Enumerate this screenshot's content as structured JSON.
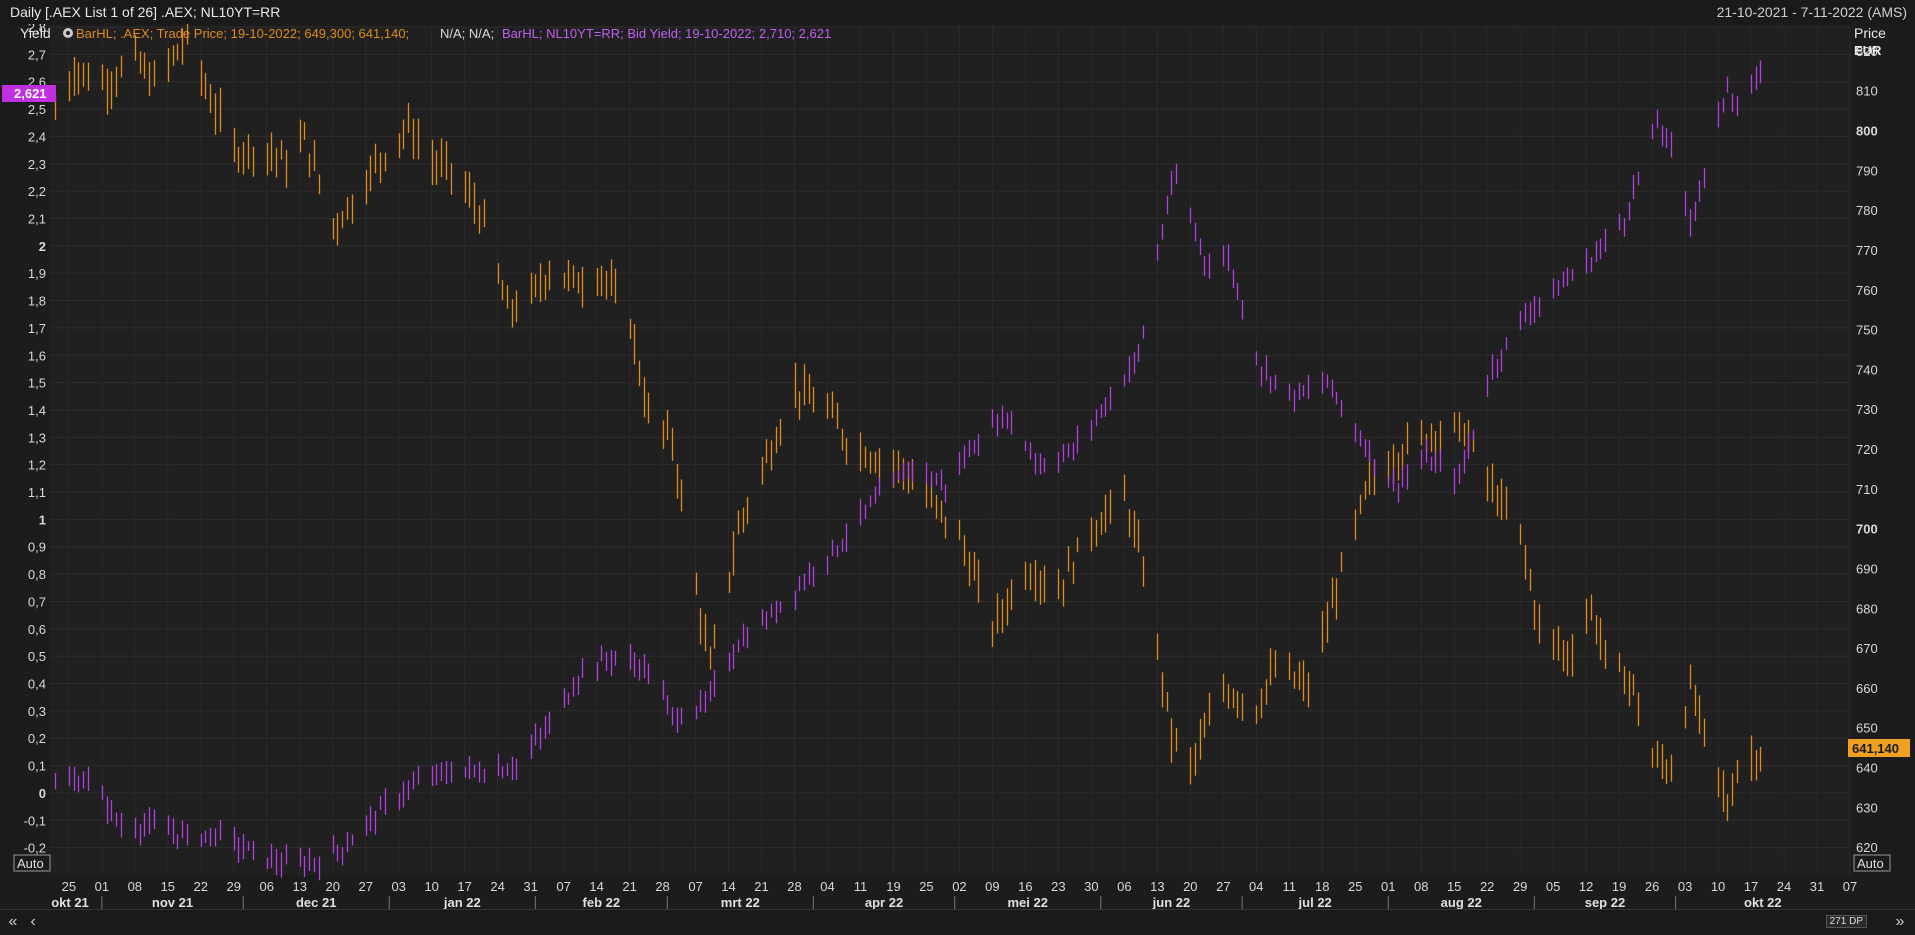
{
  "window": {
    "title": "Daily [.AEX List 1 of 26] .AEX; NL10YT=RR",
    "date_range": "21-10-2021 - 7-11-2022 (AMS)"
  },
  "legend": {
    "icon": "settings-icon",
    "aex_text": "BarHL; .AEX; Trade Price; 19-10-2022; 649,300; 641,140;",
    "na_text": "N/A; N/A;",
    "yield_text": "BarHL; NL10YT=RR; Bid Yield; 19-10-2022; 2,710; 2,621"
  },
  "left_axis": {
    "title": "Yield",
    "auto_label": "Auto",
    "current_value_label": "2,621",
    "tick_labels": [
      "2,8",
      "2,7",
      "2,6",
      "2,5",
      "2,4",
      "2,3",
      "2,2",
      "2,1",
      "2",
      "1,9",
      "1,8",
      "1,7",
      "1,6",
      "1,5",
      "1,4",
      "1,3",
      "1,2",
      "1,1",
      "1",
      "0,9",
      "0,8",
      "0,7",
      "0,6",
      "0,5",
      "0,4",
      "0,3",
      "0,2",
      "0,1",
      "0",
      "-0,1",
      "-0,2"
    ]
  },
  "right_axis": {
    "title_1": "Price",
    "title_2": "EUR",
    "auto_label": "Auto",
    "current_value_label": "641,140",
    "tick_labels": [
      "820",
      "810",
      "800",
      "790",
      "780",
      "770",
      "760",
      "750",
      "740",
      "730",
      "720",
      "710",
      "700",
      "690",
      "680",
      "670",
      "660",
      "650",
      "640",
      "630",
      "620"
    ]
  },
  "x_axis": {
    "day_labels": [
      "25",
      "01",
      "08",
      "15",
      "22",
      "29",
      "06",
      "13",
      "20",
      "27",
      "03",
      "10",
      "17",
      "24",
      "31",
      "07",
      "14",
      "21",
      "28",
      "07",
      "14",
      "21",
      "28",
      "04",
      "11",
      "19",
      "25",
      "02",
      "09",
      "16",
      "23",
      "30",
      "06",
      "13",
      "20",
      "27",
      "04",
      "11",
      "18",
      "25",
      "01",
      "08",
      "15",
      "22",
      "29",
      "05",
      "12",
      "19",
      "26",
      "03",
      "10",
      "17",
      "24",
      "31",
      "07"
    ],
    "month_labels": [
      "okt 21",
      "nov 21",
      "dec 21",
      "jan 22",
      "feb 22",
      "mrt 22",
      "apr 22",
      "mei 22",
      "jun 22",
      "jul 22",
      "aug 22",
      "sep 22",
      "okt 22"
    ]
  },
  "status": {
    "data_points": "271 DP"
  },
  "colors": {
    "background": "#1c1c1c",
    "aex": "#e08a1e",
    "yield": "#b040e0",
    "grid": "#2e2e2e"
  },
  "chart_data": {
    "type": "bar",
    "bar_style": "high-low",
    "x_range": [
      "2021-10-21",
      "2022-11-07"
    ],
    "grid": true,
    "series": [
      {
        "name": "BarHL; .AEX; Trade Price",
        "axis": "right",
        "ylim": [
          613,
          826
        ],
        "keypoints": [
          [
            "2021-10-22",
            805
          ],
          [
            "2021-10-26",
            815
          ],
          [
            "2021-11-02",
            812
          ],
          [
            "2021-11-08",
            818
          ],
          [
            "2021-11-12",
            812
          ],
          [
            "2021-11-19",
            823
          ],
          [
            "2021-11-24",
            808
          ],
          [
            "2021-11-29",
            795
          ],
          [
            "2021-12-06",
            795
          ],
          [
            "2021-12-10",
            792
          ],
          [
            "2021-12-14",
            798
          ],
          [
            "2021-12-20",
            776
          ],
          [
            "2021-12-24",
            782
          ],
          [
            "2021-12-30",
            793
          ],
          [
            "2022-01-05",
            801
          ],
          [
            "2022-01-10",
            792
          ],
          [
            "2022-01-14",
            790
          ],
          [
            "2022-01-20",
            780
          ],
          [
            "2022-01-26",
            755
          ],
          [
            "2022-01-31",
            758
          ],
          [
            "2022-02-04",
            765
          ],
          [
            "2022-02-09",
            762
          ],
          [
            "2022-02-15",
            764
          ],
          [
            "2022-02-21",
            752
          ],
          [
            "2022-02-25",
            728
          ],
          [
            "2022-03-02",
            722
          ],
          [
            "2022-03-07",
            685
          ],
          [
            "2022-03-10",
            665
          ],
          [
            "2022-03-16",
            700
          ],
          [
            "2022-03-21",
            715
          ],
          [
            "2022-03-28",
            735
          ],
          [
            "2022-04-04",
            730
          ],
          [
            "2022-04-08",
            722
          ],
          [
            "2022-04-14",
            718
          ],
          [
            "2022-04-20",
            715
          ],
          [
            "2022-04-25",
            708
          ],
          [
            "2022-05-02",
            698
          ],
          [
            "2022-05-09",
            675
          ],
          [
            "2022-05-16",
            690
          ],
          [
            "2022-05-23",
            685
          ],
          [
            "2022-05-30",
            700
          ],
          [
            "2022-06-06",
            708
          ],
          [
            "2022-06-10",
            690
          ],
          [
            "2022-06-16",
            648
          ],
          [
            "2022-06-20",
            640
          ],
          [
            "2022-06-27",
            660
          ],
          [
            "2022-07-04",
            655
          ],
          [
            "2022-07-08",
            665
          ],
          [
            "2022-07-15",
            660
          ],
          [
            "2022-07-21",
            685
          ],
          [
            "2022-07-28",
            712
          ],
          [
            "2022-08-04",
            720
          ],
          [
            "2022-08-10",
            724
          ],
          [
            "2022-08-17",
            725
          ],
          [
            "2022-08-22",
            712
          ],
          [
            "2022-08-29",
            698
          ],
          [
            "2022-09-02",
            675
          ],
          [
            "2022-09-08",
            668
          ],
          [
            "2022-09-13",
            680
          ],
          [
            "2022-09-16",
            668
          ],
          [
            "2022-09-22",
            660
          ],
          [
            "2022-09-26",
            642
          ],
          [
            "2022-09-30",
            640
          ],
          [
            "2022-10-04",
            660
          ],
          [
            "2022-10-07",
            648
          ],
          [
            "2022-10-12",
            630
          ],
          [
            "2022-10-14",
            640
          ],
          [
            "2022-10-19",
            644
          ]
        ]
      },
      {
        "name": "BarHL; NL10YT=RR; Bid Yield",
        "axis": "left",
        "ylim": [
          -0.3,
          2.8
        ],
        "keypoints": [
          [
            "2021-10-22",
            0.03
          ],
          [
            "2021-10-29",
            0.05
          ],
          [
            "2021-11-05",
            -0.12
          ],
          [
            "2021-11-12",
            -0.12
          ],
          [
            "2021-11-19",
            -0.16
          ],
          [
            "2021-11-26",
            -0.15
          ],
          [
            "2021-12-03",
            -0.22
          ],
          [
            "2021-12-10",
            -0.26
          ],
          [
            "2021-12-17",
            -0.25
          ],
          [
            "2021-12-22",
            -0.2
          ],
          [
            "2021-12-31",
            -0.05
          ],
          [
            "2022-01-07",
            0.04
          ],
          [
            "2022-01-14",
            0.08
          ],
          [
            "2022-01-21",
            0.08
          ],
          [
            "2022-01-28",
            0.1
          ],
          [
            "2022-02-04",
            0.25
          ],
          [
            "2022-02-11",
            0.45
          ],
          [
            "2022-02-18",
            0.5
          ],
          [
            "2022-02-25",
            0.45
          ],
          [
            "2022-03-02",
            0.28
          ],
          [
            "2022-03-09",
            0.32
          ],
          [
            "2022-03-16",
            0.55
          ],
          [
            "2022-03-23",
            0.65
          ],
          [
            "2022-03-30",
            0.78
          ],
          [
            "2022-04-06",
            0.9
          ],
          [
            "2022-04-13",
            1.05
          ],
          [
            "2022-04-22",
            1.2
          ],
          [
            "2022-04-29",
            1.12
          ],
          [
            "2022-05-06",
            1.3
          ],
          [
            "2022-05-12",
            1.38
          ],
          [
            "2022-05-19",
            1.2
          ],
          [
            "2022-05-26",
            1.25
          ],
          [
            "2022-06-02",
            1.42
          ],
          [
            "2022-06-09",
            1.6
          ],
          [
            "2022-06-15",
            2.15
          ],
          [
            "2022-06-17",
            2.25
          ],
          [
            "2022-06-23",
            1.95
          ],
          [
            "2022-06-28",
            1.95
          ],
          [
            "2022-07-05",
            1.55
          ],
          [
            "2022-07-12",
            1.45
          ],
          [
            "2022-07-19",
            1.5
          ],
          [
            "2022-07-26",
            1.3
          ],
          [
            "2022-08-02",
            1.12
          ],
          [
            "2022-08-09",
            1.22
          ],
          [
            "2022-08-16",
            1.15
          ],
          [
            "2022-08-23",
            1.55
          ],
          [
            "2022-08-30",
            1.75
          ],
          [
            "2022-09-06",
            1.85
          ],
          [
            "2022-09-13",
            1.95
          ],
          [
            "2022-09-20",
            2.1
          ],
          [
            "2022-09-27",
            2.45
          ],
          [
            "2022-09-30",
            2.35
          ],
          [
            "2022-10-04",
            2.1
          ],
          [
            "2022-10-07",
            2.25
          ],
          [
            "2022-10-12",
            2.6
          ],
          [
            "2022-10-14",
            2.5
          ],
          [
            "2022-10-19",
            2.62
          ]
        ]
      }
    ]
  }
}
